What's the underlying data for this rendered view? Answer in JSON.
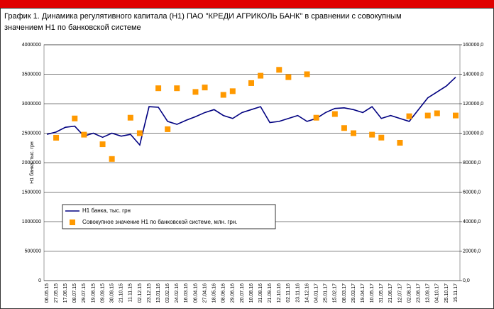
{
  "chart_data": {
    "type": "line",
    "title": "График 1. Динамика регулятивного капитала (Н1) ПАО \"КРЕДИ АГРИКОЛЬ БАНК\" в сравнении с совокупным значением Н1 по банковской системе",
    "ylabel": "Н1 банка, тыс. грн",
    "categories": [
      "06.05.15",
      "27.05.15",
      "17.06.15",
      "08.07.15",
      "29.07.15",
      "19.08.15",
      "09.09.15",
      "30.09.15",
      "21.10.15",
      "11.11.15",
      "02.12.15",
      "23.12.15",
      "13.01.16",
      "03.02.16",
      "24.02.16",
      "16.03.16",
      "06.04.16",
      "27.04.16",
      "18.05.16",
      "08.06.16",
      "29.06.16",
      "20.07.16",
      "10.08.16",
      "31.08.16",
      "21.09.16",
      "12.10.16",
      "02.11.16",
      "23.11.16",
      "14.12.16",
      "04.01.17",
      "25.01.17",
      "15.02.17",
      "08.03.17",
      "29.03.17",
      "19.04.17",
      "10.05.17",
      "31.05.17",
      "21.06.17",
      "12.07.17",
      "02.08.17",
      "23.08.17",
      "13.09.17",
      "04.10.17",
      "25.10.17",
      "15.11.17"
    ],
    "series": [
      {
        "name": "Н1 банка, тыс. грн",
        "type": "line",
        "color": "#000080",
        "values": [
          2480000,
          2520000,
          2600000,
          2620000,
          2450000,
          2500000,
          2430000,
          2500000,
          2450000,
          2480000,
          2300000,
          2950000,
          2940000,
          2700000,
          2650000,
          2720000,
          2780000,
          2850000,
          2900000,
          2800000,
          2750000,
          2850000,
          2900000,
          2950000,
          2680000,
          2700000,
          2750000,
          2800000,
          2700000,
          2750000,
          2850000,
          2920000,
          2930000,
          2900000,
          2850000,
          2950000,
          2750000,
          2800000,
          2750000,
          2700000,
          2900000,
          3100000,
          3200000,
          3300000,
          3450000
        ]
      },
      {
        "name": "Совокупное значение Н1 по банковской системе, млн. грн.",
        "type": "scatter",
        "marker": "square",
        "color": "#ff9900",
        "axis": "y2",
        "values": [
          null,
          96900,
          null,
          110000,
          99000,
          null,
          92500,
          82500,
          null,
          110500,
          100000,
          null,
          130500,
          102700,
          130500,
          null,
          128000,
          131000,
          null,
          126000,
          128500,
          null,
          134000,
          139000,
          null,
          143000,
          138000,
          null,
          140000,
          110500,
          null,
          113000,
          103500,
          100000,
          null,
          99000,
          97000,
          null,
          93500,
          111500,
          null,
          112000,
          113500,
          null,
          112000
        ]
      }
    ],
    "ylim": [
      0,
      4000000
    ],
    "yticks": [
      0,
      500000,
      1000000,
      1500000,
      2000000,
      2500000,
      3000000,
      3500000,
      4000000
    ],
    "y2lim": [
      0,
      160000
    ],
    "y2ticks": [
      {
        "value": 0,
        "label": "0,0"
      },
      {
        "value": 20000,
        "label": "20000,0"
      },
      {
        "value": 40000,
        "label": "40000,0"
      },
      {
        "value": 60000,
        "label": "60000,0"
      },
      {
        "value": 80000,
        "label": "80000,0"
      },
      {
        "value": 100000,
        "label": "100000,0"
      },
      {
        "value": 120000,
        "label": "120000,0"
      },
      {
        "value": 140000,
        "label": "140000,0"
      },
      {
        "value": 160000,
        "label": "160000,0"
      }
    ],
    "grid": true,
    "legend": "center left"
  }
}
